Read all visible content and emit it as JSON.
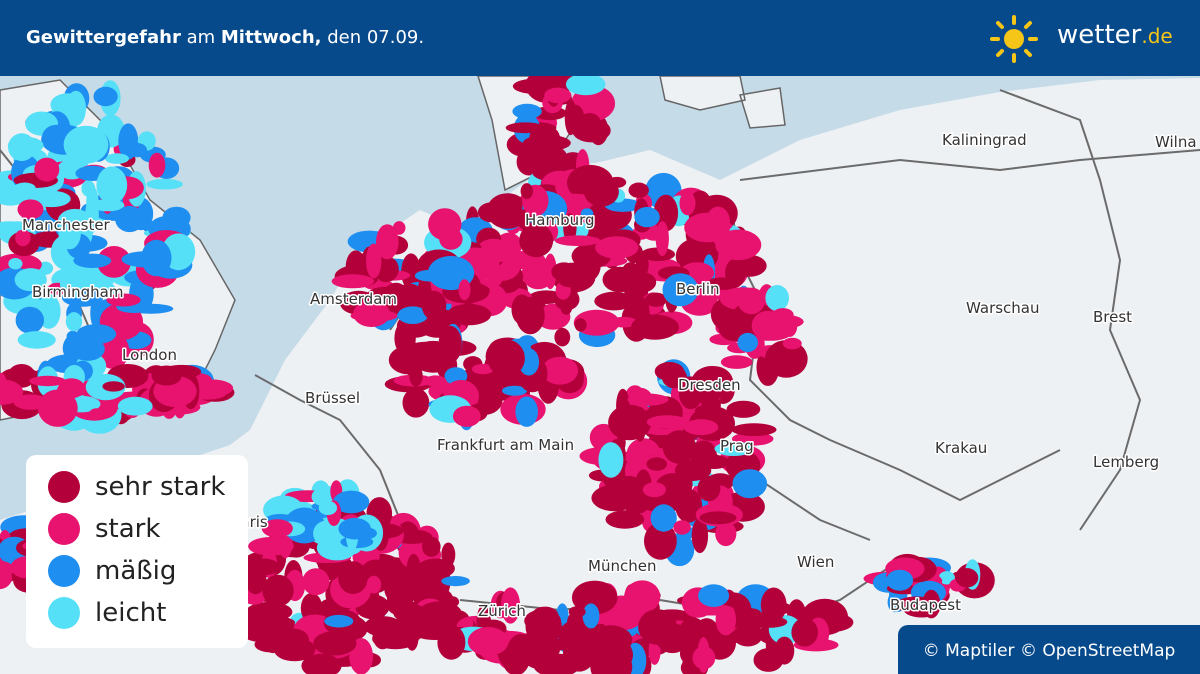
{
  "header": {
    "title": [
      {
        "text": "Gewittergefahr",
        "bold": true
      },
      {
        "text": " am ",
        "bold": false
      },
      {
        "text": "Mittwoch,",
        "bold": true
      },
      {
        "text": " den 07.09.",
        "bold": false
      }
    ],
    "logo": {
      "name": "wetter",
      "tld": ".de"
    }
  },
  "map": {
    "cities": [
      "Kaliningrad",
      "Wilna",
      "Manchester",
      "Hamburg",
      "Birmingham",
      "Amsterdam",
      "Berlin",
      "Warschau",
      "Brest",
      "London",
      "Brüssel",
      "Dresden",
      "Frankfurt am Main",
      "Prag",
      "Krakau",
      "Lemberg",
      "Paris",
      "Wien",
      "München",
      "Budapest",
      "Zürich"
    ]
  },
  "legend": {
    "items": [
      {
        "label": "sehr stark",
        "color": "#b3003b"
      },
      {
        "label": "stark",
        "color": "#e8126f"
      },
      {
        "label": "mäßig",
        "color": "#1e8ef0"
      },
      {
        "label": "leicht",
        "color": "#55e0f7"
      }
    ]
  },
  "attribution": "© Maptiler © OpenStreetMap"
}
